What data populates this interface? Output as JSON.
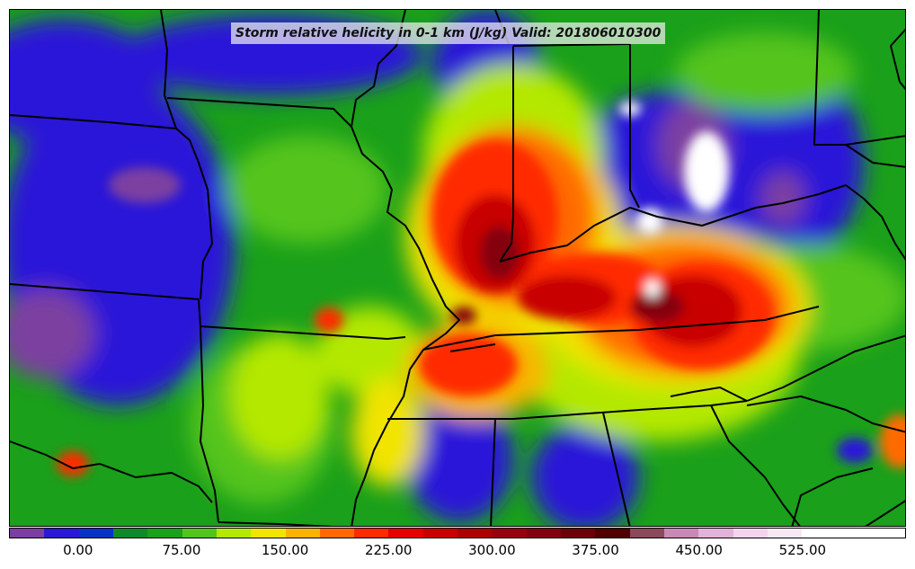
{
  "map": {
    "title": "Storm relative helicity in 0-1 km (J/kg) Valid: 201806010300",
    "background_color": "#1aa01a",
    "boundary_color": "#000000"
  },
  "colorbar": {
    "min": -50,
    "max": 600,
    "step": 25,
    "tick_labels": [
      "0.00",
      "75.00",
      "150.00",
      "225.00",
      "300.00",
      "375.00",
      "450.00",
      "525.00"
    ],
    "tick_values": [
      0,
      75,
      150,
      225,
      300,
      375,
      450,
      525
    ],
    "colors": [
      "#7b3fa0",
      "#2b17d8",
      "#0a30c8",
      "#0d8a2e",
      "#1aa01a",
      "#55c41a",
      "#b4e800",
      "#f0e400",
      "#f8b400",
      "#ff6a00",
      "#ff2a00",
      "#e60000",
      "#c80000",
      "#ac0000",
      "#980010",
      "#840010",
      "#6c0008",
      "#500000",
      "#8a4a5c",
      "#c88ab4",
      "#e2b2d8",
      "#f2d4ec",
      "#f8e8f4",
      "#ffffff",
      "#ffffff",
      "#ffffff"
    ]
  }
}
